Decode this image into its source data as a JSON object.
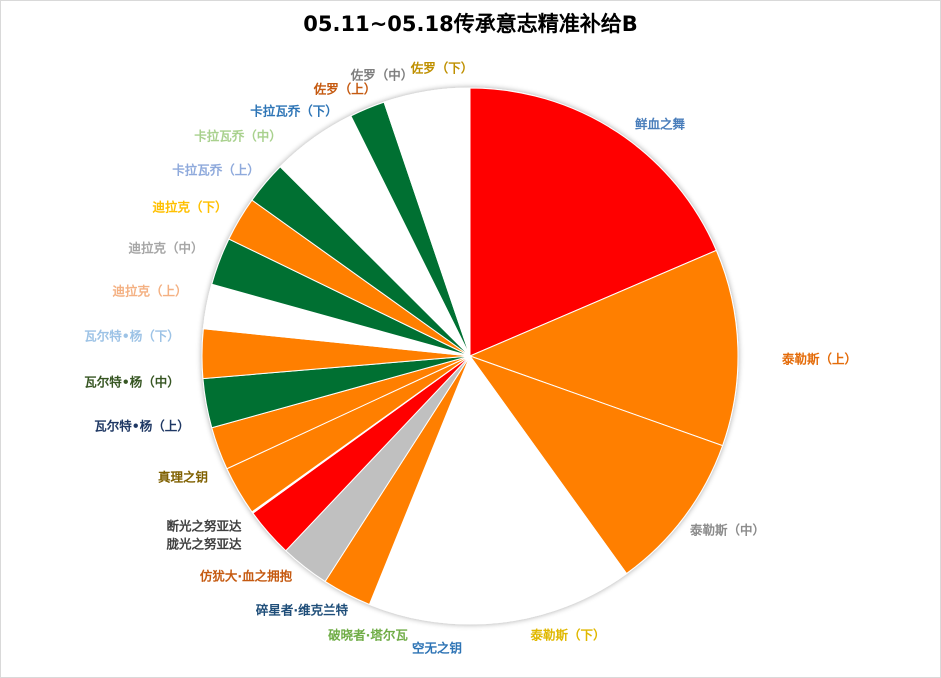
{
  "chart_data": {
    "type": "pie",
    "title": "05.11~05.18传承意志精准补给B",
    "legend": "none",
    "slices": [
      {
        "label": "鲜血之舞",
        "value": 20.0,
        "color": "#ff0000",
        "label_color": "#4a7ebb"
      },
      {
        "label": "泰勒斯（上）",
        "value": 12.8,
        "color": "#ff7f00",
        "label_color": "#e46c0a"
      },
      {
        "label": "泰勒斯（中）",
        "value": 10.4,
        "color": "#ff7f00",
        "label_color": "#8c8c8c"
      },
      {
        "label": "泰勒斯（下）",
        "value": 10.3,
        "color": "#ffffff",
        "label_color": "#e0b800"
      },
      {
        "label": "空无之钥",
        "value": 3.4,
        "color": "#ffffff",
        "label_color": "#2e74b5"
      },
      {
        "label": "破晓者·塔尔瓦",
        "value": 3.6,
        "color": "#ffffff",
        "label_color": "#70ad47"
      },
      {
        "label": "碎星者·维克兰特",
        "value": 3.2,
        "color": "#ff7f00",
        "label_color": "#1f4e79"
      },
      {
        "label": "仿犹大·血之拥抱",
        "value": 3.2,
        "color": "#c0c0c0",
        "label_color": "#c55a11"
      },
      {
        "label": "胧光之努亚达",
        "value": 3.2,
        "color": "#ff0000",
        "label_color": "#404040"
      },
      {
        "label": "断光之努亚达",
        "value": 0.1,
        "color": "#ffffff",
        "label_color": "#404040"
      },
      {
        "label": "真理之钥",
        "value": 3.2,
        "color": "#ff7f00",
        "label_color": "#7f6000"
      },
      {
        "label": "瓦尔特•杨（上）",
        "value": 2.8,
        "color": "#ff7f00",
        "label_color": "#1f3864"
      },
      {
        "label": "瓦尔特•杨（中）",
        "value": 3.2,
        "color": "#007033",
        "label_color": "#375623"
      },
      {
        "label": "瓦尔特•杨（下）",
        "value": 3.2,
        "color": "#ff7f00",
        "label_color": "#9dc3e6"
      },
      {
        "label": "迪拉克（上）",
        "value": 2.9,
        "color": "#ffffff",
        "label_color": "#f4b183"
      },
      {
        "label": "迪拉克（中）",
        "value": 3.1,
        "color": "#007033",
        "label_color": "#a6a6a6"
      },
      {
        "label": "迪拉克（下）",
        "value": 2.9,
        "color": "#ff7f00",
        "label_color": "#ffc000"
      },
      {
        "label": "卡拉瓦乔（上）",
        "value": 2.8,
        "color": "#007033",
        "label_color": "#8faadc"
      },
      {
        "label": "卡拉瓦乔（中）",
        "value": 2.9,
        "color": "#ffffff",
        "label_color": "#a9d18e"
      },
      {
        "label": "卡拉瓦乔（下）",
        "value": 2.7,
        "color": "#ffffff",
        "label_color": "#2e75b6"
      },
      {
        "label": "佐罗（上）",
        "value": 2.3,
        "color": "#007033",
        "label_color": "#c55a11"
      },
      {
        "label": "佐罗（中）",
        "value": 2.8,
        "color": "#ffffff",
        "label_color": "#7f7f7f"
      },
      {
        "label": "佐罗（下）",
        "value": 2.8,
        "color": "#ffffff",
        "label_color": "#bf9000"
      }
    ]
  }
}
